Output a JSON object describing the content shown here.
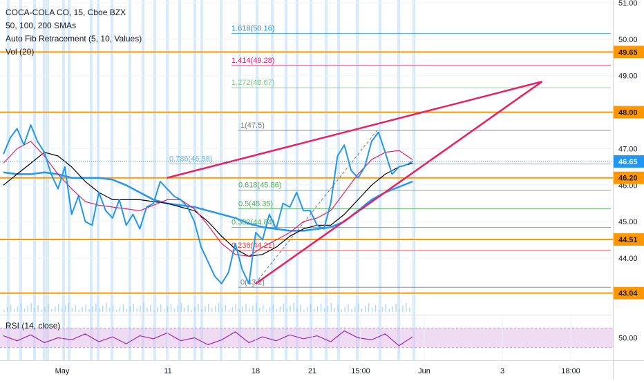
{
  "header": {
    "symbol": "COCA-COLA CO, 15, Cboe BZX",
    "indicator_smas": "50, 100, 200 SMAs",
    "indicator_fib": "Auto Fib Retracement (5, 10, Values)",
    "indicator_vol": "Vol (20)",
    "indicator_rsi": "RSI (14, close)"
  },
  "colors": {
    "price": "#2196f3",
    "sma50": "#e91e63",
    "sma100": "#000000",
    "sma200": "#2196f3",
    "wedge": "#e91e63",
    "hline": "#ff9800",
    "rsi": "#9c27b0",
    "rsi_band": "#e1bee7",
    "session": "#bbdefb",
    "current_price_tag": "#2196f3"
  },
  "chart_data": [
    {
      "type": "line",
      "title": "COCA-COLA CO, 15, Cboe BZX",
      "y_axis": {
        "ticks": [
          "51.00",
          "50.00",
          "49.00",
          "47.00",
          "46.00",
          "45.00",
          "44.00"
        ],
        "ylim": [
          42.6,
          51.1
        ]
      },
      "x_axis": {
        "ticks": [
          "May",
          "11",
          "18",
          "21",
          "15:00",
          "Jun",
          "3",
          "18:00"
        ]
      },
      "price_labels": [
        {
          "value": "49.65",
          "kind": "horizontal-line"
        },
        {
          "value": "48.00",
          "kind": "horizontal-line"
        },
        {
          "value": "46.65",
          "kind": "current-price"
        },
        {
          "value": "46.20",
          "kind": "horizontal-line"
        },
        {
          "value": "44.51",
          "kind": "horizontal-line"
        },
        {
          "value": "43.04",
          "kind": "horizontal-line"
        }
      ],
      "horizontal_lines": [
        49.65,
        48.0,
        46.2,
        44.51,
        43.04
      ],
      "fib_levels": [
        {
          "ratio": "1.618",
          "value": "50.16",
          "label": "1.618(50.16)",
          "color": "#2196f3"
        },
        {
          "ratio": "1.414",
          "value": "49.28",
          "label": "1.414(49.28)",
          "color": "#e91e63"
        },
        {
          "ratio": "1.272",
          "value": "48.67",
          "label": "1.272(48.67)",
          "color": "#81c784"
        },
        {
          "ratio": "1",
          "value": "47.5",
          "label": "1(47.5)",
          "color": "#787b86"
        },
        {
          "ratio": "0.786",
          "value": "46.58",
          "label": "0.786(46.58)",
          "color": "#64b5f6"
        },
        {
          "ratio": "0.618",
          "value": "45.86",
          "label": "0.618(45.86)",
          "color": "#4caf50"
        },
        {
          "ratio": "0.5",
          "value": "45.35",
          "label": "0.5(45.35)",
          "color": "#4caf50"
        },
        {
          "ratio": "0.382",
          "value": "44.84",
          "label": "0.382(44.84)",
          "color": "#4caf50"
        },
        {
          "ratio": "0.236",
          "value": "44.21",
          "label": "0.236(44.21)",
          "color": "#e53935"
        },
        {
          "ratio": "0",
          "value": "43.2",
          "label": "0(43.2)",
          "color": "#787b86"
        }
      ],
      "wedge": {
        "upper": [
          [
            43.2,
            0
          ],
          [
            48.84,
            1
          ]
        ],
        "note": "rising wedge trendlines"
      },
      "series": [
        {
          "name": "price",
          "x": [
            0,
            10,
            20,
            30,
            40,
            50,
            60,
            70,
            80,
            90,
            100,
            110,
            120,
            130,
            140,
            150,
            160,
            170,
            180,
            190,
            200,
            210,
            220,
            230,
            240,
            250,
            260,
            270,
            280,
            290,
            300,
            310,
            320,
            330,
            340,
            350,
            360,
            370,
            380,
            390,
            400,
            410,
            420,
            430,
            440,
            450,
            460,
            470,
            480,
            490,
            500,
            510,
            520,
            530,
            540,
            550,
            560,
            570,
            580,
            590,
            600
          ],
          "y": [
            46.85,
            47.3,
            47.55,
            47.1,
            47.65,
            47.2,
            46.9,
            46.3,
            45.9,
            46.5,
            45.2,
            45.7,
            45.0,
            44.9,
            45.8,
            45.3,
            45.1,
            45.6,
            44.9,
            45.2,
            44.8,
            45.4,
            45.5,
            46.1,
            45.9,
            45.7,
            45.6,
            45.4,
            45.0,
            44.3,
            43.9,
            43.5,
            43.3,
            43.6,
            44.4,
            43.7,
            43.3,
            44.7,
            44.5,
            45.2,
            44.8,
            45.5,
            45.4,
            45.8,
            45.3,
            45.3,
            44.9,
            44.8,
            45.5,
            46.8,
            47.1,
            46.4,
            46.2,
            46.5,
            47.2,
            47.45,
            46.9,
            46.3,
            46.5,
            46.55,
            46.65
          ]
        },
        {
          "name": "SMA 50",
          "x": [
            0,
            20,
            40,
            60,
            80,
            100,
            120,
            140,
            160,
            180,
            200,
            220,
            240,
            260,
            280,
            300,
            320,
            340,
            360,
            380,
            400,
            420,
            440,
            460,
            480,
            500,
            520,
            540,
            560,
            580,
            600
          ],
          "y": [
            46.6,
            47.0,
            47.2,
            46.8,
            46.3,
            45.9,
            45.55,
            45.45,
            45.4,
            45.35,
            45.3,
            45.45,
            45.6,
            45.6,
            45.35,
            44.9,
            44.4,
            44.1,
            44.05,
            44.3,
            44.5,
            44.7,
            45.0,
            45.1,
            45.3,
            45.8,
            46.3,
            46.7,
            46.9,
            46.95,
            46.7
          ]
        },
        {
          "name": "SMA 100",
          "x": [
            0,
            20,
            40,
            60,
            80,
            100,
            120,
            140,
            160,
            180,
            200,
            220,
            240,
            260,
            280,
            300,
            320,
            340,
            360,
            380,
            400,
            420,
            440,
            460,
            480,
            500,
            520,
            540,
            560,
            580,
            600
          ],
          "y": [
            46.0,
            46.3,
            46.6,
            46.9,
            46.8,
            46.5,
            46.1,
            45.8,
            45.6,
            45.6,
            45.6,
            45.55,
            45.5,
            45.4,
            45.3,
            45.0,
            44.6,
            44.25,
            44.05,
            44.1,
            44.3,
            44.6,
            44.8,
            44.9,
            44.9,
            45.2,
            45.6,
            46.0,
            46.3,
            46.5,
            46.6
          ]
        },
        {
          "name": "SMA 200",
          "x": [
            0,
            20,
            40,
            60,
            80,
            100,
            120,
            140,
            160,
            180,
            200,
            220,
            240,
            260,
            280,
            300,
            320,
            340,
            360,
            380,
            400,
            420,
            440,
            460,
            480,
            500,
            520,
            540,
            560,
            580,
            600
          ],
          "y": [
            46.35,
            46.3,
            46.3,
            46.35,
            46.3,
            46.2,
            46.2,
            46.2,
            46.15,
            46.0,
            45.8,
            45.6,
            45.5,
            45.45,
            45.4,
            45.3,
            45.2,
            45.1,
            44.95,
            44.85,
            44.8,
            44.75,
            44.75,
            44.8,
            44.85,
            45.0,
            45.3,
            45.6,
            45.8,
            45.95,
            46.1
          ]
        }
      ]
    },
    {
      "type": "line",
      "title": "RSI (14, close)",
      "y_axis": {
        "ticks": [
          "50.00"
        ],
        "ylim": [
          30,
          70
        ]
      },
      "series": [
        {
          "name": "RSI",
          "x": [
            0,
            20,
            40,
            60,
            80,
            100,
            120,
            140,
            160,
            180,
            200,
            220,
            240,
            260,
            280,
            300,
            320,
            340,
            360,
            380,
            400,
            420,
            440,
            460,
            480,
            500,
            520,
            540,
            560,
            580,
            600
          ],
          "y": [
            52,
            47,
            53,
            45,
            50,
            48,
            54,
            46,
            51,
            44,
            52,
            49,
            55,
            47,
            50,
            43,
            48,
            56,
            45,
            51,
            47,
            53,
            49,
            52,
            46,
            57,
            50,
            48,
            54,
            42,
            51
          ]
        }
      ]
    }
  ]
}
